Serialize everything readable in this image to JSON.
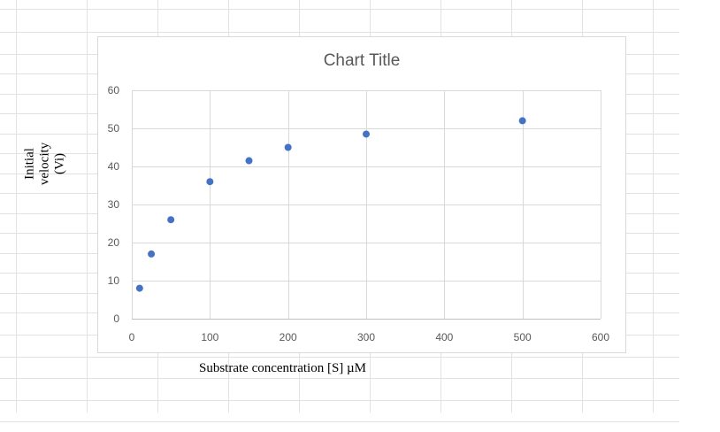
{
  "chart_data": {
    "type": "scatter",
    "title": "Chart Title",
    "xlabel": "Substrate concentration [S] µM",
    "ylabel_lines": [
      "Initial",
      "velocity",
      "(Vi)"
    ],
    "xlim": [
      0,
      600
    ],
    "ylim": [
      0,
      60
    ],
    "xticks": [
      0,
      100,
      200,
      300,
      400,
      500,
      600
    ],
    "yticks": [
      0,
      10,
      20,
      30,
      40,
      50,
      60
    ],
    "grid": true,
    "legend": "none",
    "series": [
      {
        "color": "#4472c4",
        "points": [
          {
            "x": 10,
            "y": 8
          },
          {
            "x": 25,
            "y": 17
          },
          {
            "x": 50,
            "y": 26
          },
          {
            "x": 100,
            "y": 36
          },
          {
            "x": 150,
            "y": 41.5
          },
          {
            "x": 200,
            "y": 45
          },
          {
            "x": 300,
            "y": 48.5
          },
          {
            "x": 500,
            "y": 52
          }
        ]
      }
    ]
  }
}
